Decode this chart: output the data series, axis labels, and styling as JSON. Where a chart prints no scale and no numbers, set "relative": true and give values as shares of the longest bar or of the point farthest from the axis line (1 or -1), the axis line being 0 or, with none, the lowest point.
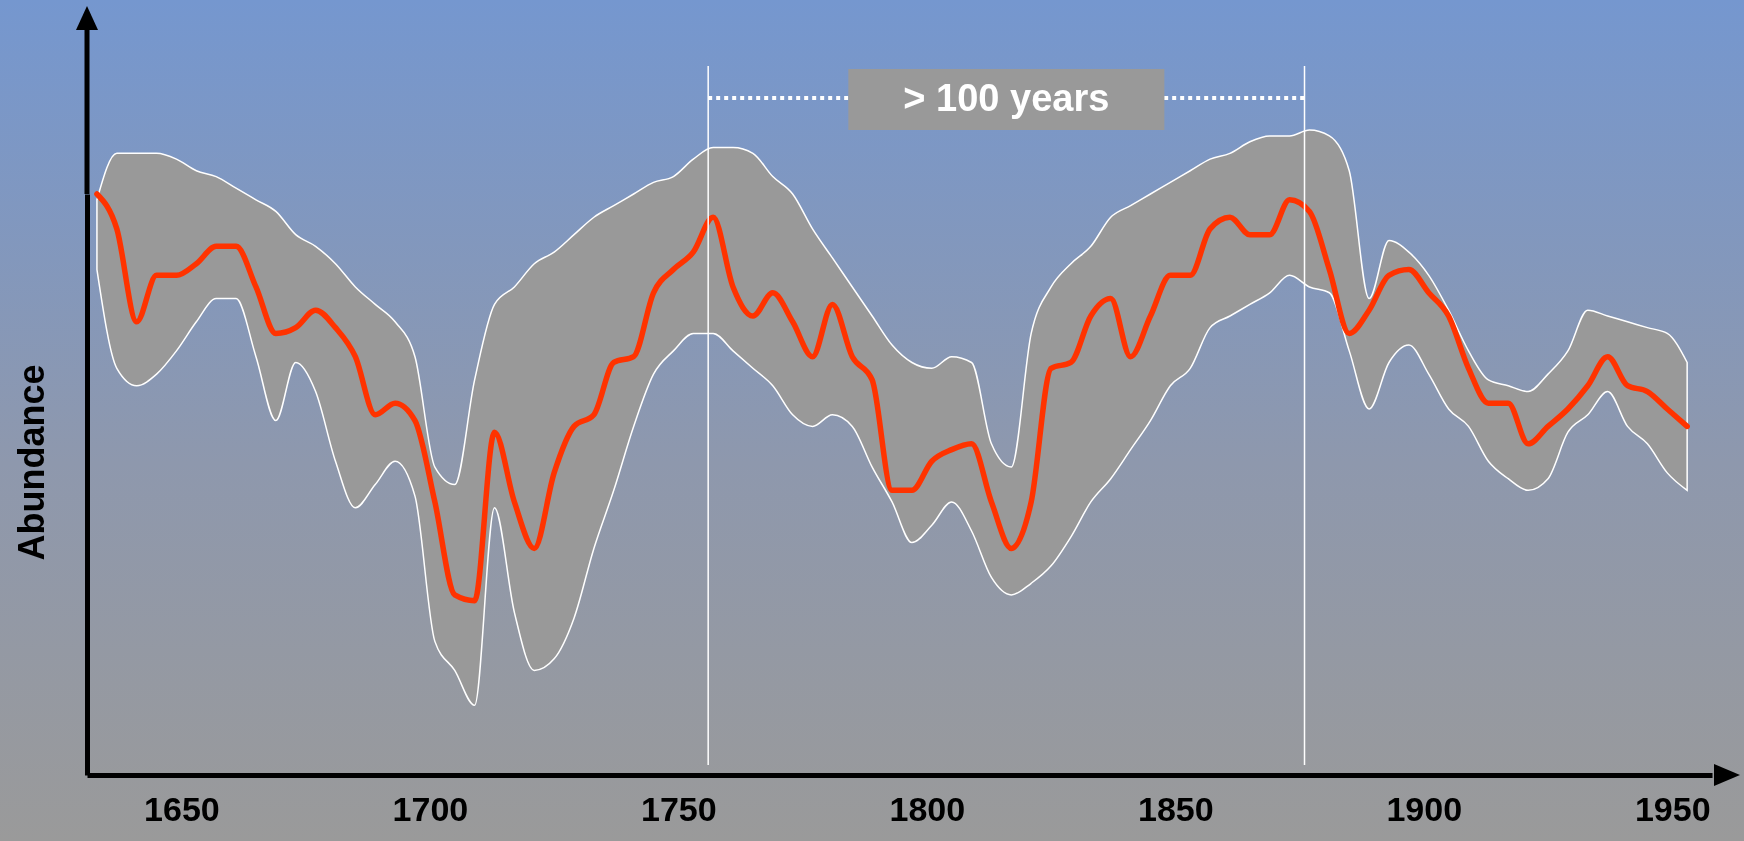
{
  "chart_data": {
    "type": "line",
    "relative": true,
    "ylabel": "Abundance",
    "xlim": [
      1631,
      1958
    ],
    "xticks": [
      1650,
      1700,
      1750,
      1800,
      1850,
      1900,
      1950
    ],
    "x": [
      1633,
      1637,
      1641,
      1645,
      1649,
      1653,
      1657,
      1661,
      1665,
      1669,
      1673,
      1677,
      1681,
      1685,
      1689,
      1693,
      1697,
      1701,
      1705,
      1709,
      1713,
      1717,
      1721,
      1725,
      1729,
      1733,
      1737,
      1741,
      1745,
      1749,
      1753,
      1757,
      1761,
      1765,
      1769,
      1773,
      1777,
      1781,
      1785,
      1789,
      1793,
      1797,
      1801,
      1805,
      1809,
      1813,
      1817,
      1821,
      1825,
      1829,
      1833,
      1837,
      1841,
      1845,
      1849,
      1853,
      1857,
      1861,
      1865,
      1869,
      1873,
      1877,
      1881,
      1885,
      1889,
      1893,
      1897,
      1901,
      1905,
      1909,
      1913,
      1917,
      1921,
      1925,
      1929,
      1933,
      1937,
      1941,
      1945,
      1949,
      1953
    ],
    "series": [
      {
        "color": "#ff3300",
        "values": [
          1,
          0.94,
          0.78,
          0.86,
          0.86,
          0.88,
          0.91,
          0.91,
          0.84,
          0.76,
          0.77,
          0.8,
          0.77,
          0.72,
          0.62,
          0.64,
          0.61,
          0.47,
          0.31,
          0.3,
          0.59,
          0.47,
          0.39,
          0.52,
          0.6,
          0.62,
          0.71,
          0.72,
          0.83,
          0.87,
          0.9,
          0.96,
          0.84,
          0.79,
          0.83,
          0.78,
          0.72,
          0.81,
          0.72,
          0.68,
          0.49,
          0.49,
          0.54,
          0.56,
          0.57,
          0.47,
          0.39,
          0.47,
          0.7,
          0.71,
          0.79,
          0.82,
          0.72,
          0.79,
          0.86,
          0.86,
          0.94,
          0.96,
          0.93,
          0.93,
          0.99,
          0.97,
          0.87,
          0.76,
          0.8,
          0.86,
          0.87,
          0.83,
          0.79,
          0.7,
          0.64,
          0.64,
          0.57,
          0.6,
          0.63,
          0.67,
          0.72,
          0.67,
          0.66,
          0.63,
          0.6
        ],
        "upper": [
          0.99,
          1.07,
          1.07,
          1.07,
          1.06,
          1.04,
          1.03,
          1.01,
          0.99,
          0.97,
          0.93,
          0.91,
          0.88,
          0.84,
          0.81,
          0.78,
          0.72,
          0.53,
          0.5,
          0.68,
          0.81,
          0.84,
          0.88,
          0.9,
          0.93,
          0.96,
          0.98,
          1.0,
          1.02,
          1.03,
          1.06,
          1.08,
          1.08,
          1.07,
          1.03,
          1.0,
          0.94,
          0.89,
          0.84,
          0.79,
          0.74,
          0.71,
          0.7,
          0.72,
          0.71,
          0.57,
          0.53,
          0.76,
          0.84,
          0.88,
          0.91,
          0.96,
          0.98,
          1.0,
          1.02,
          1.04,
          1.06,
          1.07,
          1.09,
          1.1,
          1.1,
          1.11,
          1.1,
          1.04,
          0.82,
          0.92,
          0.9,
          0.86,
          0.8,
          0.73,
          0.68,
          0.67,
          0.66,
          0.69,
          0.73,
          0.8,
          0.79,
          0.78,
          0.77,
          0.76,
          0.71
        ],
        "lower": [
          0.87,
          0.7,
          0.67,
          0.69,
          0.73,
          0.78,
          0.82,
          0.82,
          0.72,
          0.61,
          0.71,
          0.66,
          0.54,
          0.46,
          0.5,
          0.54,
          0.48,
          0.23,
          0.18,
          0.12,
          0.46,
          0.28,
          0.18,
          0.2,
          0.27,
          0.39,
          0.49,
          0.6,
          0.69,
          0.73,
          0.76,
          0.76,
          0.73,
          0.7,
          0.67,
          0.62,
          0.6,
          0.62,
          0.6,
          0.53,
          0.47,
          0.4,
          0.43,
          0.47,
          0.42,
          0.34,
          0.31,
          0.33,
          0.36,
          0.41,
          0.47,
          0.51,
          0.56,
          0.61,
          0.67,
          0.7,
          0.77,
          0.79,
          0.81,
          0.83,
          0.86,
          0.84,
          0.83,
          0.73,
          0.63,
          0.71,
          0.74,
          0.69,
          0.63,
          0.6,
          0.54,
          0.51,
          0.49,
          0.51,
          0.59,
          0.62,
          0.66,
          0.6,
          0.57,
          0.52,
          0.49
        ]
      }
    ],
    "ref_lines": [
      {
        "axis": "x",
        "value": 1756,
        "color": "#ffffff"
      },
      {
        "axis": "x",
        "value": 1876,
        "color": "#ffffff"
      }
    ],
    "annotations": [
      "> 100 years"
    ]
  }
}
